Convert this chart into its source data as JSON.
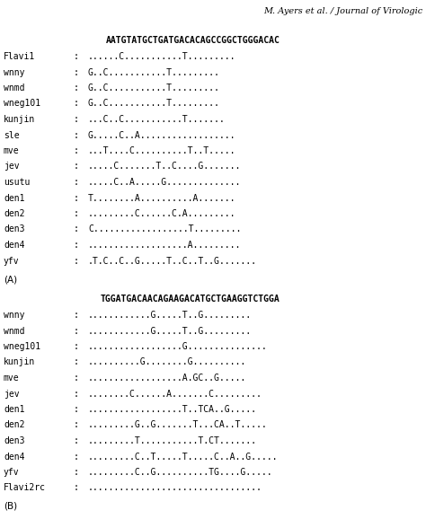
{
  "header_text": "M. Ayers et al. / Journal of Virologic",
  "section_A": {
    "reference_seq": "AATGTATGCTGATGACACAGCCGGCTGGGACAC",
    "rows": [
      [
        "Flavi1",
        "......C...........T........."
      ],
      [
        "wnny",
        "G..C...........T........."
      ],
      [
        "wnmd",
        "G..C...........T........."
      ],
      [
        "wneg101",
        "G..C...........T........."
      ],
      [
        "kunjin",
        "...C..C...........T......."
      ],
      [
        "sle",
        "G.....C..A.................."
      ],
      [
        "mve",
        "...T....C..........T..T....."
      ],
      [
        "jev",
        ".....C.......T..C....G......."
      ],
      [
        "usutu",
        ".....C..A.....G.............."
      ],
      [
        "den1",
        "T........A..........A......."
      ],
      [
        "den2",
        ".........C......C.A........."
      ],
      [
        "den3",
        "C..................T........."
      ],
      [
        "den4",
        "...................A........."
      ],
      [
        "yfv",
        ".T.C..C..G.....T..C..T..G......."
      ]
    ],
    "label": "(A)"
  },
  "section_B": {
    "reference_seq": "TGGATGACAACAGAAGACATGCTGAAGGTCTGGA",
    "rows": [
      [
        "wnny",
        "............G.....T..G........."
      ],
      [
        "wnmd",
        "............G.....T..G........."
      ],
      [
        "wneg101",
        "..................G..............."
      ],
      [
        "kunjin",
        "..........G........G.........."
      ],
      [
        "mve",
        "..................A.GC..G....."
      ],
      [
        "jev",
        "........C......A.......C........."
      ],
      [
        "den1",
        "..................T..TCA..G....."
      ],
      [
        "den2",
        ".........G..G.......T...CA..T....."
      ],
      [
        "den3",
        ".........T...........T.CT......."
      ],
      [
        "den4",
        ".........C..T.....T.....C..A..G....."
      ],
      [
        "yfv",
        ".........C..G..........TG....G....."
      ],
      [
        "Flavi2rc",
        "................................."
      ]
    ],
    "label": "(B)"
  }
}
